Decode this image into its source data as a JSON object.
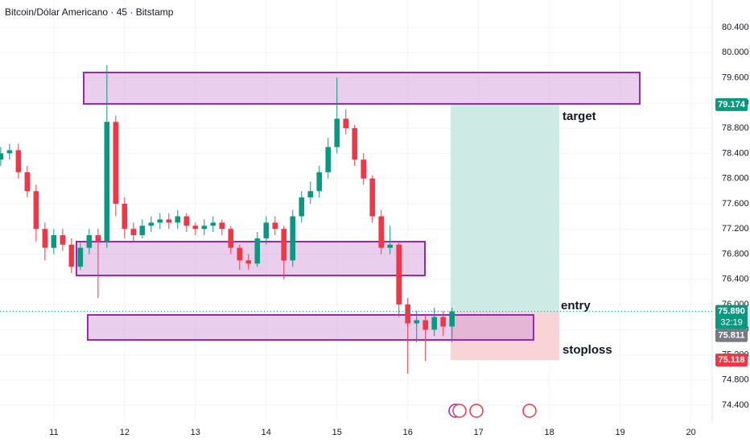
{
  "chart_data": {
    "type": "candlestick",
    "title": "Bitcoin/Dólar Americano · 45 · Bitstamp",
    "x": [
      10.25,
      10.375,
      10.5,
      10.625,
      10.75,
      10.875,
      11.0,
      11.125,
      11.25,
      11.375,
      11.5,
      11.625,
      11.75,
      11.875,
      12.0,
      12.125,
      12.25,
      12.375,
      12.5,
      12.625,
      12.75,
      12.875,
      13.0,
      13.125,
      13.25,
      13.375,
      13.5,
      13.625,
      13.75,
      13.875,
      14.0,
      14.125,
      14.25,
      14.375,
      14.5,
      14.625,
      14.75,
      14.875,
      15.0,
      15.125,
      15.25,
      15.375,
      15.5,
      15.625,
      15.75,
      15.875,
      16.0,
      16.125,
      16.25,
      16.375,
      16.5,
      16.625
    ],
    "open": [
      78.3,
      78.4,
      78.45,
      78.1,
      77.8,
      77.2,
      76.9,
      77.1,
      76.95,
      76.6,
      76.9,
      77.1,
      77.0,
      78.9,
      77.6,
      77.2,
      77.1,
      77.25,
      77.3,
      77.35,
      77.3,
      77.4,
      77.25,
      77.2,
      77.25,
      77.3,
      77.2,
      76.9,
      76.7,
      76.65,
      77.05,
      77.3,
      77.2,
      76.7,
      77.4,
      77.7,
      77.8,
      78.1,
      78.5,
      78.95,
      78.8,
      78.3,
      78.0,
      77.4,
      76.9,
      76.95,
      76.0,
      75.7,
      75.75,
      75.6,
      75.8,
      75.65
    ],
    "high": [
      78.5,
      78.55,
      78.55,
      78.2,
      77.9,
      77.3,
      77.2,
      77.2,
      77.05,
      77.0,
      77.2,
      77.2,
      79.8,
      79.0,
      77.7,
      77.3,
      77.35,
      77.4,
      77.45,
      77.45,
      77.5,
      77.45,
      77.3,
      77.35,
      77.4,
      77.35,
      77.25,
      76.95,
      76.8,
      77.15,
      77.4,
      77.4,
      77.25,
      77.5,
      77.8,
      77.95,
      78.2,
      78.65,
      79.6,
      79.1,
      78.85,
      78.4,
      78.05,
      77.5,
      77.25,
      77.0,
      76.1,
      75.9,
      75.85,
      75.95,
      75.9,
      75.95
    ],
    "low": [
      78.2,
      78.3,
      78.0,
      77.7,
      77.0,
      76.7,
      76.8,
      76.85,
      76.5,
      76.55,
      76.8,
      76.1,
      76.9,
      77.4,
      77.05,
      77.0,
      77.05,
      77.15,
      77.2,
      77.2,
      77.2,
      77.15,
      77.1,
      77.1,
      77.15,
      77.1,
      76.8,
      76.55,
      76.55,
      76.6,
      76.95,
      77.1,
      76.4,
      76.6,
      77.3,
      77.6,
      77.7,
      78.0,
      78.4,
      78.7,
      78.2,
      77.9,
      77.3,
      76.8,
      76.8,
      75.8,
      74.9,
      75.4,
      75.1,
      75.5,
      75.5,
      75.4
    ],
    "close": [
      78.4,
      78.45,
      78.1,
      77.8,
      77.2,
      76.9,
      77.1,
      76.95,
      76.6,
      76.9,
      77.1,
      77.0,
      78.9,
      77.6,
      77.2,
      77.1,
      77.25,
      77.3,
      77.35,
      77.3,
      77.4,
      77.25,
      77.2,
      77.25,
      77.3,
      77.2,
      76.9,
      76.7,
      76.65,
      77.05,
      77.3,
      77.2,
      76.7,
      77.4,
      77.7,
      77.8,
      78.1,
      78.5,
      78.95,
      78.8,
      78.3,
      78.0,
      77.4,
      76.9,
      76.95,
      76.0,
      75.7,
      75.75,
      75.6,
      75.8,
      75.65,
      75.89
    ],
    "up_color": "#089981",
    "down_color": "#f23645",
    "xlim": [
      10.24,
      20.3
    ],
    "xticks": [
      11,
      12,
      13,
      14,
      15,
      16,
      17,
      18,
      19,
      20
    ],
    "ylim": [
      74.12,
      80.835
    ],
    "yticks": [
      {
        "value": 74.4,
        "label": "74.400"
      },
      {
        "value": 74.8,
        "label": "74.800"
      },
      {
        "value": 75.2,
        "label": "75.200"
      },
      {
        "value": 75.6,
        "label": "75.600"
      },
      {
        "value": 76.0,
        "label": "76.000"
      },
      {
        "value": 76.4,
        "label": "76.400"
      },
      {
        "value": 76.8,
        "label": "76.800"
      },
      {
        "value": 77.2,
        "label": "77.200"
      },
      {
        "value": 77.6,
        "label": "77.600"
      },
      {
        "value": 78.0,
        "label": "78.000"
      },
      {
        "value": 78.4,
        "label": "78.400"
      },
      {
        "value": 78.8,
        "label": "78.800"
      },
      {
        "value": 79.2,
        "label": "79.200"
      },
      {
        "value": 79.6,
        "label": "79.600"
      },
      {
        "value": 80.0,
        "label": "80.000"
      },
      {
        "value": 80.4,
        "label": "80.400"
      }
    ],
    "grid": true,
    "price_tags": [
      {
        "value": 79.174,
        "label": "79.174",
        "color": "#089981"
      },
      {
        "value": 75.89,
        "label": "75.890",
        "color": "#089981"
      },
      {
        "value": 75.811,
        "label": "75.811",
        "color": "#787b86"
      },
      {
        "value": 75.118,
        "label": "75.118",
        "color": "#f23645"
      }
    ],
    "countdown": "32:19",
    "annotations": {
      "target": "target",
      "entry": "entry",
      "stoploss": "stoploss"
    }
  }
}
